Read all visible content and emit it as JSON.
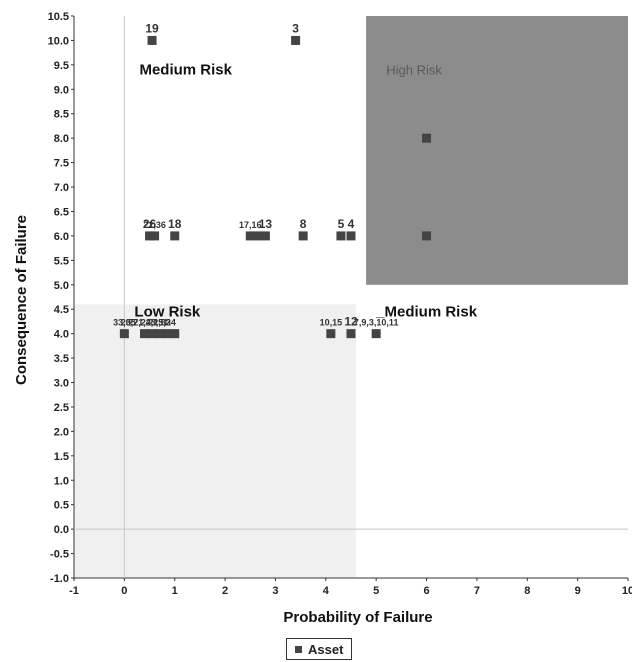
{
  "chart_data": {
    "type": "scatter",
    "xlabel": "Probability of Failure",
    "ylabel": "Consequence of Failure",
    "xlim": [
      -1,
      10
    ],
    "ylim": [
      -1,
      10.5
    ],
    "x_ticks": [
      "-1",
      "0",
      "1",
      "2",
      "3",
      "4",
      "5",
      "6",
      "7",
      "8",
      "9",
      "10"
    ],
    "y_ticks": [
      "-1.0",
      "-0.5",
      "0.0",
      "0.5",
      "1.0",
      "1.5",
      "2.0",
      "2.5",
      "3.0",
      "3.5",
      "4.0",
      "4.5",
      "5.0",
      "5.5",
      "6.0",
      "6.5",
      "7.0",
      "7.5",
      "8.0",
      "8.5",
      "9.0",
      "9.5",
      "10.0",
      "10.5"
    ],
    "zones": [
      {
        "label": "High Risk",
        "x": [
          4.8,
          10
        ],
        "y": [
          5.0,
          10.5
        ],
        "color": "#8c8c8c"
      },
      {
        "label": "Low Risk",
        "x": [
          -1,
          4.6
        ],
        "y": [
          -1,
          4.6
        ],
        "color": "#f0f0f0"
      }
    ],
    "zone_text": [
      {
        "text": "Medium Risk",
        "x": 0.3,
        "y": 9.3
      },
      {
        "text": "High Risk",
        "x": 5.2,
        "y": 9.3
      },
      {
        "text": "Low Risk",
        "x": 0.2,
        "y": 4.35
      },
      {
        "text": "_Medium Risk",
        "x": 5.0,
        "y": 4.35
      }
    ],
    "series": [
      {
        "name": "Asset",
        "color": "#444444",
        "points": [
          {
            "x": 0.55,
            "y": 10.0,
            "label": "19"
          },
          {
            "x": 3.4,
            "y": 10.0,
            "label": "3"
          },
          {
            "x": 0.5,
            "y": 6.0,
            "label": "26"
          },
          {
            "x": 0.6,
            "y": 6.0,
            "label": "22,36"
          },
          {
            "x": 1.0,
            "y": 6.0,
            "label": "18"
          },
          {
            "x": 2.5,
            "y": 6.0,
            "label": "17,16"
          },
          {
            "x": 2.65,
            "y": 6.0,
            "label": ""
          },
          {
            "x": 2.8,
            "y": 6.0,
            "label": "13"
          },
          {
            "x": 3.55,
            "y": 6.0,
            "label": "8"
          },
          {
            "x": 4.3,
            "y": 6.0,
            "label": "5"
          },
          {
            "x": 4.5,
            "y": 6.0,
            "label": "4"
          },
          {
            "x": 6.0,
            "y": 8.0,
            "label": ""
          },
          {
            "x": 6.0,
            "y": 6.0,
            "label": ""
          },
          {
            "x": 0.0,
            "y": 4.0,
            "label": "33,35"
          },
          {
            "x": 0.4,
            "y": 4.0,
            "label": "20,21,23,31"
          },
          {
            "x": 0.55,
            "y": 4.0,
            "label": "27,24,25,34"
          },
          {
            "x": 0.7,
            "y": 4.0,
            "label": "21,32"
          },
          {
            "x": 0.85,
            "y": 4.0,
            "label": ""
          },
          {
            "x": 1.0,
            "y": 4.0,
            "label": ""
          },
          {
            "x": 4.1,
            "y": 4.0,
            "label": "10,15"
          },
          {
            "x": 4.5,
            "y": 4.0,
            "label": "12"
          },
          {
            "x": 5.0,
            "y": 4.0,
            "label": "7,9,3,10,11"
          }
        ]
      }
    ],
    "legend": {
      "entries": [
        "Asset"
      ],
      "placement": "bottom"
    },
    "grid": false
  }
}
